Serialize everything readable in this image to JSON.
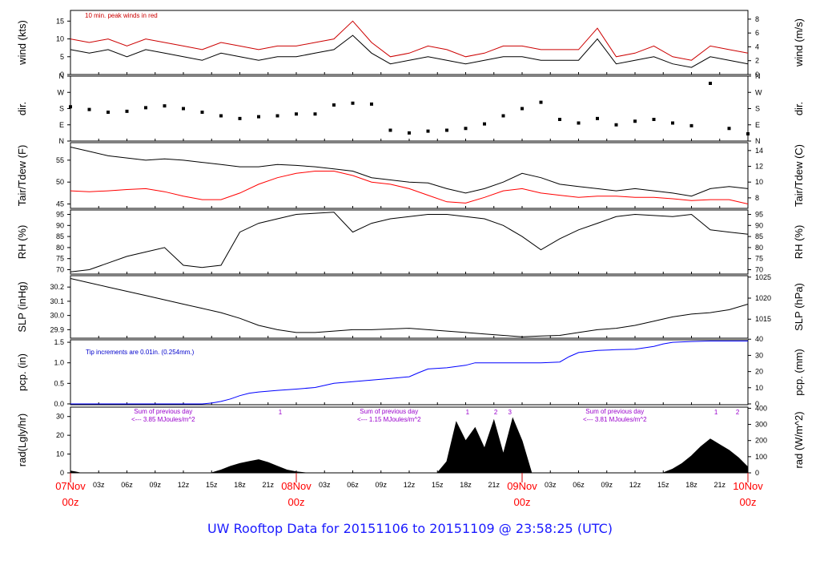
{
  "chart_data": {
    "type": "line",
    "footer_title": "UW Rooftop Data for 20151106  to  20151109 @ 23:58:25  (UTC)",
    "time_axis": {
      "start_hour": 0,
      "end_hour": 72,
      "major_labels": [
        {
          "hour": 0,
          "top": "07Nov",
          "bottom": "00z"
        },
        {
          "hour": 24,
          "top": "08Nov",
          "bottom": "00z"
        },
        {
          "hour": 48,
          "top": "09Nov",
          "bottom": "00z"
        },
        {
          "hour": 72,
          "top": "10Nov",
          "bottom": "00z"
        }
      ],
      "minor_labels": [
        "03z",
        "06z",
        "09z",
        "12z",
        "15z",
        "18z",
        "21z",
        "03z",
        "06z",
        "09z",
        "12z",
        "15z",
        "18z",
        "21z",
        "03z",
        "06z",
        "09z",
        "12z",
        "15z",
        "18z",
        "21z"
      ],
      "minor_hours": [
        3,
        6,
        9,
        12,
        15,
        18,
        21,
        27,
        30,
        33,
        36,
        39,
        42,
        45,
        51,
        54,
        57,
        60,
        63,
        66,
        69
      ]
    },
    "panels": [
      {
        "id": "wind",
        "left_label": "wind (kts)",
        "right_label": "wind (m/s)",
        "ylim": [
          0,
          18
        ],
        "left_ticks": [
          0,
          5,
          10,
          15
        ],
        "right_ticks": [
          "0",
          "2",
          "4",
          "6",
          "8"
        ],
        "right_tick_values": [
          0,
          3.89,
          7.78,
          11.66,
          15.55
        ],
        "annotation": "10 min. peak winds in red",
        "series": [
          {
            "name": "wind",
            "color": "#000000",
            "hours": [
              0,
              2,
              4,
              6,
              8,
              10,
              12,
              14,
              16,
              18,
              20,
              22,
              24,
              26,
              28,
              30,
              32,
              34,
              36,
              38,
              40,
              42,
              44,
              46,
              48,
              50,
              52,
              54,
              56,
              58,
              60,
              62,
              64,
              66,
              68,
              70,
              72
            ],
            "values": [
              7,
              6,
              7,
              5,
              7,
              6,
              5,
              4,
              6,
              5,
              4,
              5,
              5,
              6,
              7,
              11,
              6,
              3,
              4,
              5,
              4,
              3,
              4,
              5,
              5,
              4,
              4,
              4,
              10,
              3,
              4,
              5,
              3,
              2,
              5,
              4,
              3
            ]
          },
          {
            "name": "peak",
            "color": "#cc0000",
            "hours": [
              0,
              2,
              4,
              6,
              8,
              10,
              12,
              14,
              16,
              18,
              20,
              22,
              24,
              26,
              28,
              30,
              32,
              34,
              36,
              38,
              40,
              42,
              44,
              46,
              48,
              50,
              52,
              54,
              56,
              58,
              60,
              62,
              64,
              66,
              68,
              70,
              72
            ],
            "values": [
              10,
              9,
              10,
              8,
              10,
              9,
              8,
              7,
              9,
              8,
              7,
              8,
              8,
              9,
              10,
              15,
              9,
              5,
              6,
              8,
              7,
              5,
              6,
              8,
              8,
              7,
              7,
              7,
              13,
              5,
              6,
              8,
              5,
              4,
              8,
              7,
              6
            ]
          }
        ]
      },
      {
        "id": "dir",
        "left_label": "dir.",
        "right_label": "dir.",
        "ylim": [
          0,
          360
        ],
        "left_ticks": [
          "N",
          "E",
          "S",
          "W",
          "N"
        ],
        "right_ticks": [
          "N",
          "E",
          "S",
          "W",
          "N"
        ],
        "tick_values": [
          0,
          90,
          180,
          270,
          360
        ],
        "series": [
          {
            "name": "direction",
            "color": "#000000",
            "hours": [
              0,
              2,
              4,
              6,
              8,
              10,
              12,
              14,
              16,
              18,
              20,
              22,
              24,
              26,
              28,
              30,
              32,
              34,
              36,
              38,
              40,
              42,
              44,
              46,
              48,
              50,
              52,
              54,
              56,
              58,
              60,
              62,
              64,
              66,
              68,
              70,
              72
            ],
            "values": [
              190,
              175,
              160,
              165,
              185,
              195,
              180,
              160,
              140,
              125,
              135,
              140,
              150,
              150,
              200,
              210,
              205,
              60,
              45,
              55,
              60,
              70,
              95,
              140,
              180,
              215,
              120,
              100,
              125,
              90,
              110,
              120,
              100,
              85,
              320,
              70,
              40
            ]
          }
        ]
      },
      {
        "id": "temp",
        "left_label": "Tair/Tdew (F)",
        "right_label": "Tair/Tdew (C)",
        "ylim": [
          44,
          59
        ],
        "left_ticks": [
          45,
          50,
          55
        ],
        "right_ticks": [
          "8",
          "10",
          "12",
          "14"
        ],
        "right_tick_values": [
          46.4,
          50,
          53.6,
          57.2
        ],
        "series": [
          {
            "name": "Tair",
            "color": "#000000",
            "hours": [
              0,
              2,
              4,
              6,
              8,
              10,
              12,
              14,
              16,
              18,
              20,
              22,
              24,
              26,
              28,
              30,
              32,
              34,
              36,
              38,
              40,
              42,
              44,
              46,
              48,
              50,
              52,
              54,
              56,
              58,
              60,
              62,
              64,
              66,
              68,
              70,
              72
            ],
            "values": [
              58,
              57,
              56,
              55.5,
              55,
              55.3,
              55,
              54.5,
              54,
              53.5,
              53.5,
              54,
              53.8,
              53.5,
              53,
              52.5,
              51,
              50.5,
              50,
              49.8,
              48.5,
              47.5,
              48.5,
              50,
              52,
              51,
              49.5,
              49,
              48.5,
              48,
              48.5,
              48,
              47.5,
              46.8,
              48.5,
              49,
              48.5
            ]
          },
          {
            "name": "Tdew",
            "color": "#ff0000",
            "hours": [
              0,
              2,
              4,
              6,
              8,
              10,
              12,
              14,
              16,
              18,
              20,
              22,
              24,
              26,
              28,
              30,
              32,
              34,
              36,
              38,
              40,
              42,
              44,
              46,
              48,
              50,
              52,
              54,
              56,
              58,
              60,
              62,
              64,
              66,
              68,
              70,
              72
            ],
            "values": [
              48,
              47.8,
              48,
              48.3,
              48.5,
              47.8,
              46.8,
              46,
              46,
              47.5,
              49.5,
              51,
              52,
              52.5,
              52.5,
              51.5,
              50,
              49.5,
              48.5,
              47,
              45.5,
              45.2,
              46.5,
              48,
              48.5,
              47.5,
              47,
              46.5,
              46.8,
              46.8,
              46.5,
              46.5,
              46.2,
              45.8,
              46,
              46,
              45
            ]
          }
        ]
      },
      {
        "id": "rh",
        "left_label": "RH (%)",
        "right_label": "RH (%)",
        "ylim": [
          68,
          97
        ],
        "left_ticks": [
          70,
          75,
          80,
          85,
          90,
          95
        ],
        "right_ticks": [
          "70",
          "75",
          "80",
          "85",
          "90",
          "95"
        ],
        "series": [
          {
            "name": "RH",
            "color": "#000000",
            "hours": [
              0,
              2,
              4,
              6,
              8,
              10,
              12,
              14,
              16,
              18,
              20,
              22,
              24,
              26,
              28,
              30,
              32,
              34,
              36,
              38,
              40,
              42,
              44,
              46,
              48,
              50,
              52,
              54,
              56,
              58,
              60,
              62,
              64,
              66,
              68,
              70,
              72
            ],
            "values": [
              69,
              70,
              73,
              76,
              78,
              80,
              72,
              71,
              72,
              87,
              91,
              93,
              95,
              95.5,
              96,
              87,
              91,
              93,
              94,
              95,
              95,
              94,
              93,
              90,
              85,
              79,
              84,
              88,
              91,
              94,
              95,
              94.5,
              94,
              95,
              88,
              87,
              86
            ]
          }
        ]
      },
      {
        "id": "slp",
        "left_label": "SLP (inHg)",
        "right_label": "SLP (hPa)",
        "ylim": [
          29.84,
          30.28
        ],
        "left_ticks": [
          "29.9",
          "30.0",
          "30.1",
          "30.2"
        ],
        "left_tick_values": [
          29.9,
          30.0,
          30.1,
          30.2
        ],
        "right_ticks": [
          "1015",
          "1020",
          "1025"
        ],
        "right_tick_values": [
          29.974,
          30.122,
          30.27
        ],
        "series": [
          {
            "name": "SLP",
            "color": "#000000",
            "hours": [
              0,
              2,
              4,
              6,
              8,
              10,
              12,
              14,
              16,
              18,
              20,
              22,
              24,
              26,
              28,
              30,
              32,
              34,
              36,
              38,
              40,
              42,
              44,
              46,
              48,
              50,
              52,
              54,
              56,
              58,
              60,
              62,
              64,
              66,
              68,
              70,
              72
            ],
            "values": [
              30.26,
              30.23,
              30.2,
              30.17,
              30.14,
              30.11,
              30.08,
              30.05,
              30.02,
              29.98,
              29.93,
              29.9,
              29.88,
              29.88,
              29.89,
              29.9,
              29.9,
              29.905,
              29.91,
              29.9,
              29.89,
              29.88,
              29.87,
              29.86,
              29.85,
              29.855,
              29.86,
              29.88,
              29.9,
              29.91,
              29.93,
              29.96,
              29.99,
              30.01,
              30.02,
              30.04,
              30.08
            ]
          }
        ]
      },
      {
        "id": "pcp",
        "left_label": "pcp. (in)",
        "right_label": "pcp. (mm)",
        "ylim": [
          -0.02,
          1.56
        ],
        "left_ticks": [
          "0.0",
          "0.5",
          "1.0",
          "1.5"
        ],
        "left_tick_values": [
          0,
          0.5,
          1.0,
          1.5
        ],
        "right_ticks": [
          "0",
          "10",
          "20",
          "30",
          "40"
        ],
        "right_tick_values": [
          0,
          0.394,
          0.787,
          1.181,
          1.575
        ],
        "annotation": "Tip increments are 0.01in. (0.254mm.)",
        "series": [
          {
            "name": "cumulative precip",
            "color": "#0000ff",
            "hours": [
              0,
              14,
              15,
              16,
              17,
              18,
              19,
              20,
              21,
              22,
              24,
              26,
              27,
              28,
              30,
              32,
              34,
              36,
              37,
              38,
              40,
              42,
              43,
              44,
              46,
              48,
              50,
              52,
              53,
              54,
              56,
              58,
              60,
              62,
              63,
              64,
              66,
              68,
              70,
              72
            ],
            "values": [
              0,
              0,
              0.02,
              0.06,
              0.12,
              0.2,
              0.26,
              0.29,
              0.31,
              0.33,
              0.36,
              0.4,
              0.45,
              0.5,
              0.54,
              0.58,
              0.62,
              0.66,
              0.76,
              0.85,
              0.88,
              0.94,
              1.0,
              1.0,
              1.0,
              1.0,
              1.0,
              1.02,
              1.15,
              1.25,
              1.3,
              1.32,
              1.33,
              1.4,
              1.46,
              1.5,
              1.52,
              1.53,
              1.53,
              1.53
            ]
          }
        ]
      },
      {
        "id": "rad",
        "left_label": "rad(Lgly/hr)",
        "right_label": "rad (W/m^2)",
        "ylim": [
          0,
          35
        ],
        "left_ticks": [
          0,
          10,
          20,
          30
        ],
        "right_ticks": [
          "0",
          "100",
          "200",
          "300",
          "400"
        ],
        "right_tick_values": [
          0,
          8.6,
          17.2,
          25.8,
          34.4
        ],
        "annotations": [
          {
            "hour": 9,
            "line1": "Sum of previous day",
            "line2": "<--- 3.85 MJoules/m^2"
          },
          {
            "hour": 33,
            "line1": "Sum of previous day",
            "line2": "<--- 1.15 MJoules/m^2"
          },
          {
            "hour": 57,
            "line1": "Sum of previous day",
            "line2": "<--- 3.81 MJoules/m^2"
          }
        ],
        "marks": [
          {
            "hour": 22.3,
            "label": "1"
          },
          {
            "hour": 42.2,
            "label": "1"
          },
          {
            "hour": 45.2,
            "label": "2"
          },
          {
            "hour": 46.7,
            "label": "3"
          },
          {
            "hour": 68.6,
            "label": "1"
          },
          {
            "hour": 70.9,
            "label": "2"
          }
        ],
        "series": [
          {
            "name": "radiation",
            "color": "#000000",
            "hours": [
              0,
              0.5,
              1,
              15,
              16,
              17,
              18,
              19,
              20,
              21,
              22,
              23,
              24,
              25,
              39,
              40,
              41,
              42,
              43,
              44,
              45,
              46,
              47,
              48,
              49,
              63,
              64,
              65,
              66,
              67,
              68,
              69,
              70,
              71,
              72
            ],
            "values": [
              1,
              0.5,
              0,
              0,
              1.5,
              3.5,
              5,
              6,
              7,
              5.5,
              3.5,
              1.5,
              0.5,
              0,
              0,
              6,
              27,
              17,
              24,
              13,
              28,
              10,
              29,
              17,
              0,
              0,
              2,
              5,
              9,
              14,
              18,
              15,
              12,
              8,
              3
            ]
          }
        ]
      }
    ]
  }
}
